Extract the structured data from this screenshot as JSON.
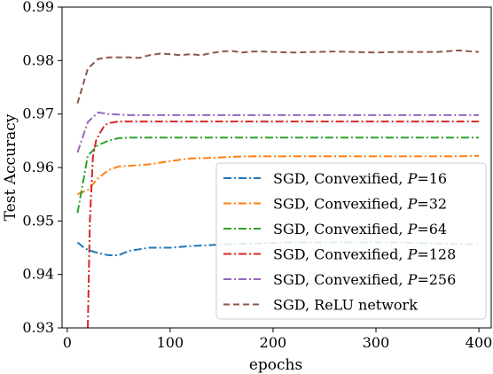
{
  "chart_data": {
    "type": "line",
    "title": "",
    "xlabel": "epochs",
    "ylabel": "Test Accuracy",
    "xlim": [
      -5,
      412
    ],
    "ylim": [
      0.93,
      0.99
    ],
    "xticks": [
      0,
      100,
      200,
      300,
      400
    ],
    "yticks": [
      0.93,
      0.94,
      0.95,
      0.96,
      0.97,
      0.98,
      0.99
    ],
    "xtick_labels": [
      "0",
      "100",
      "200",
      "300",
      "400"
    ],
    "ytick_labels": [
      "0.93",
      "0.94",
      "0.95",
      "0.96",
      "0.97",
      "0.98",
      "0.99"
    ],
    "grid": false,
    "legend_position": "lower-right",
    "series": [
      {
        "name": "SGD, Convexified, P=16",
        "legend_prefix": "SGD, Convexified, ",
        "legend_var": "P",
        "legend_value": "=16",
        "color": "#1f77b4",
        "dash": "dashdot",
        "x": [
          10,
          15,
          20,
          30,
          40,
          50,
          60,
          70,
          80,
          90,
          100,
          120,
          140,
          160,
          180,
          200,
          220,
          240,
          260,
          280,
          300,
          320,
          340,
          360,
          380,
          400
        ],
        "y": [
          0.946,
          0.9452,
          0.9446,
          0.944,
          0.9436,
          0.9436,
          0.9444,
          0.9447,
          0.945,
          0.945,
          0.945,
          0.9453,
          0.9455,
          0.9457,
          0.9458,
          0.9459,
          0.946,
          0.946,
          0.946,
          0.946,
          0.946,
          0.946,
          0.9459,
          0.9458,
          0.9457,
          0.9456
        ]
      },
      {
        "name": "SGD, Convexified, P=32",
        "legend_prefix": "SGD, Convexified, ",
        "legend_var": "P",
        "legend_value": "=32",
        "color": "#ff7f0e",
        "dash": "dashdot",
        "x": [
          10,
          20,
          30,
          40,
          50,
          60,
          80,
          100,
          120,
          140,
          160,
          180,
          200,
          220,
          240,
          260,
          280,
          300,
          320,
          340,
          360,
          380,
          400
        ],
        "y": [
          0.955,
          0.9558,
          0.958,
          0.9595,
          0.9602,
          0.9603,
          0.9606,
          0.9612,
          0.9617,
          0.9618,
          0.962,
          0.9621,
          0.9621,
          0.9621,
          0.9621,
          0.9621,
          0.9621,
          0.9621,
          0.9621,
          0.9621,
          0.9621,
          0.9621,
          0.9622
        ]
      },
      {
        "name": "SGD, Convexified, P=64",
        "legend_prefix": "SGD, Convexified, ",
        "legend_var": "P",
        "legend_value": "=64",
        "color": "#2ca02c",
        "dash": "dashdot",
        "x": [
          10,
          20,
          30,
          40,
          50,
          60,
          80,
          100,
          150,
          200,
          250,
          300,
          350,
          400
        ],
        "y": [
          0.9515,
          0.9622,
          0.9642,
          0.965,
          0.9655,
          0.9656,
          0.9656,
          0.9656,
          0.9656,
          0.9656,
          0.9656,
          0.9656,
          0.9656,
          0.9656
        ]
      },
      {
        "name": "SGD, Convexified, P=128",
        "legend_prefix": "SGD, Convexified, ",
        "legend_var": "P",
        "legend_value": "=128",
        "color": "#d62728",
        "dash": "dashdot",
        "x": [
          20,
          22,
          25,
          28,
          32,
          36,
          40,
          50,
          60,
          80,
          100,
          150,
          200,
          250,
          300,
          350,
          400
        ],
        "y": [
          0.93,
          0.95,
          0.962,
          0.965,
          0.9665,
          0.9678,
          0.9683,
          0.9686,
          0.9686,
          0.9686,
          0.9686,
          0.9686,
          0.9686,
          0.9686,
          0.9686,
          0.9686,
          0.9686
        ]
      },
      {
        "name": "SGD, Convexified, P=256",
        "legend_prefix": "SGD, Convexified, ",
        "legend_var": "P",
        "legend_value": "=256",
        "color": "#9467bd",
        "dash": "dashdot",
        "x": [
          10,
          20,
          30,
          40,
          50,
          60,
          80,
          100,
          150,
          200,
          250,
          300,
          350,
          400
        ],
        "y": [
          0.9628,
          0.9685,
          0.9703,
          0.97,
          0.9699,
          0.9698,
          0.9698,
          0.9698,
          0.9698,
          0.9698,
          0.9698,
          0.9698,
          0.9698,
          0.9698
        ]
      },
      {
        "name": "SGD, ReLU network",
        "legend_prefix": "SGD, ReLU network",
        "legend_var": "",
        "legend_value": "",
        "color": "#8c564b",
        "dash": "dashed",
        "x": [
          10,
          20,
          30,
          40,
          50,
          60,
          70,
          80,
          90,
          100,
          110,
          120,
          130,
          140,
          150,
          160,
          170,
          180,
          190,
          200,
          220,
          240,
          260,
          280,
          300,
          320,
          340,
          360,
          380,
          400
        ],
        "y": [
          0.972,
          0.9785,
          0.9803,
          0.9806,
          0.9806,
          0.9806,
          0.9805,
          0.981,
          0.9813,
          0.9812,
          0.981,
          0.9812,
          0.981,
          0.9814,
          0.9817,
          0.9818,
          0.9815,
          0.9817,
          0.9817,
          0.9816,
          0.9815,
          0.9816,
          0.9817,
          0.9816,
          0.9815,
          0.9816,
          0.9816,
          0.9816,
          0.9819,
          0.9816
        ]
      }
    ]
  }
}
